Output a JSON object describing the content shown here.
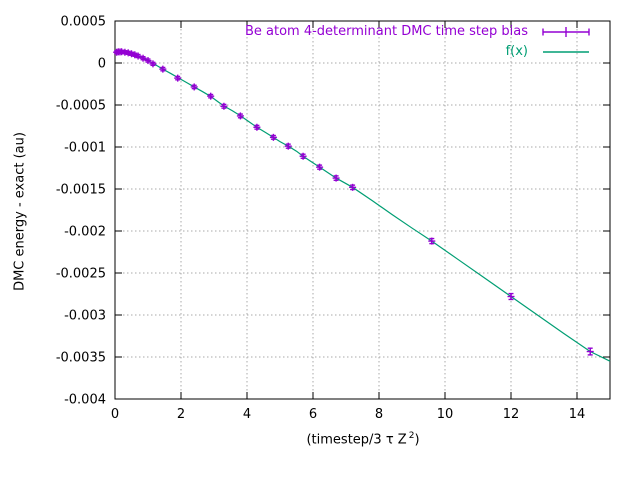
{
  "ylabel": "DMC energy - exact (au)",
  "xlabel_parts": {
    "pre": "(timestep/3 τ Z",
    "sup": "2",
    "post": ")"
  },
  "legend": [
    {
      "label": "Be atom 4-determinant DMC time step bias",
      "color": "#9400d3",
      "sample": "yerrorbar"
    },
    {
      "label": "f(x)",
      "color": "#009e73",
      "sample": "line"
    }
  ],
  "colors": {
    "points": "#9400d3",
    "fit_line": "#009e73",
    "axis": "#000000",
    "grid": "#aaaaaa",
    "background": "#ffffff"
  },
  "chart_data": {
    "type": "scatter",
    "title": "",
    "xlabel": "(timestep/3 τ Z²)",
    "ylabel": "DMC energy - exact (au)",
    "xlim": [
      0,
      15
    ],
    "ylim": [
      -0.004,
      0.0005
    ],
    "xtick_values": [
      0,
      2,
      4,
      6,
      8,
      10,
      12,
      14
    ],
    "xtick_labels": [
      "0",
      "2",
      "4",
      "6",
      "8",
      "10",
      "12",
      "14"
    ],
    "ytick_values": [
      0.0005,
      0,
      -0.0005,
      -0.001,
      -0.0015,
      -0.002,
      -0.0025,
      -0.003,
      -0.0035,
      -0.004
    ],
    "ytick_labels": [
      "0.0005",
      "0",
      "-0.0005",
      "-0.001",
      "-0.0015",
      "-0.002",
      "-0.0025",
      "-0.003",
      "-0.0035",
      "-0.004"
    ],
    "grid": true,
    "legend_position": "top-right-inside",
    "series": [
      {
        "name": "Be atom 4-determinant DMC time step bias",
        "type": "points_with_yerrorbars",
        "marker": "plus",
        "color": "#9400d3",
        "points": [
          {
            "x": 0.05,
            "y": 0.000128,
            "err": 1.8e-05
          },
          {
            "x": 0.1,
            "y": 0.000133,
            "err": 1.8e-05
          },
          {
            "x": 0.15,
            "y": 0.000132,
            "err": 1.8e-05
          },
          {
            "x": 0.2,
            "y": 0.000134,
            "err": 1.8e-05
          },
          {
            "x": 0.3,
            "y": 0.000128,
            "err": 1.8e-05
          },
          {
            "x": 0.4,
            "y": 0.000121,
            "err": 1.8e-05
          },
          {
            "x": 0.5,
            "y": 0.00011,
            "err": 1.8e-05
          },
          {
            "x": 0.6,
            "y": 9.8e-05,
            "err": 1.8e-05
          },
          {
            "x": 0.7,
            "y": 8.3e-05,
            "err": 1.8e-05
          },
          {
            "x": 0.85,
            "y": 5.7e-05,
            "err": 1.8e-05
          },
          {
            "x": 1.0,
            "y": 2.9e-05,
            "err": 1.8e-05
          },
          {
            "x": 1.15,
            "y": -1e-05,
            "err": 1.8e-05
          },
          {
            "x": 1.45,
            "y": -7.3e-05,
            "err": 2e-05
          },
          {
            "x": 1.9,
            "y": -0.00018,
            "err": 2e-05
          },
          {
            "x": 2.4,
            "y": -0.000285,
            "err": 2e-05
          },
          {
            "x": 2.9,
            "y": -0.000395,
            "err": 2e-05
          },
          {
            "x": 3.3,
            "y": -0.000515,
            "err": 2.2e-05
          },
          {
            "x": 3.8,
            "y": -0.00063,
            "err": 2.2e-05
          },
          {
            "x": 4.3,
            "y": -0.000765,
            "err": 2.2e-05
          },
          {
            "x": 4.8,
            "y": -0.000885,
            "err": 2.2e-05
          },
          {
            "x": 5.25,
            "y": -0.00099,
            "err": 2.4e-05
          },
          {
            "x": 5.7,
            "y": -0.00111,
            "err": 2.4e-05
          },
          {
            "x": 6.2,
            "y": -0.00124,
            "err": 2.4e-05
          },
          {
            "x": 6.7,
            "y": -0.00137,
            "err": 2.6e-05
          },
          {
            "x": 7.2,
            "y": -0.00148,
            "err": 2.6e-05
          },
          {
            "x": 9.6,
            "y": -0.00212,
            "err": 3e-05
          },
          {
            "x": 12.0,
            "y": -0.00278,
            "err": 3.5e-05
          },
          {
            "x": 14.4,
            "y": -0.003435,
            "err": 4e-05
          }
        ]
      },
      {
        "name": "f(x)",
        "type": "line",
        "color": "#009e73",
        "points": [
          [
            0.0,
            0.000128
          ],
          [
            0.2,
            0.000133
          ],
          [
            0.4,
            0.000121
          ],
          [
            0.6,
            0.0001
          ],
          [
            0.8,
            6.8e-05
          ],
          [
            1.0,
            2.9e-05
          ],
          [
            1.2,
            -1.5e-05
          ],
          [
            1.45,
            -7.3e-05
          ],
          [
            1.7,
            -0.000127
          ],
          [
            2.0,
            -0.000195
          ],
          [
            2.2,
            -0.00024
          ],
          [
            2.4,
            -0.000285
          ],
          [
            2.65,
            -0.00034
          ],
          [
            2.9,
            -0.000398
          ],
          [
            3.1,
            -0.000455
          ],
          [
            3.3,
            -0.000512
          ],
          [
            3.55,
            -0.000567
          ],
          [
            3.8,
            -0.000628
          ],
          [
            4.05,
            -0.000696
          ],
          [
            4.3,
            -0.000765
          ],
          [
            4.55,
            -0.000825
          ],
          [
            4.8,
            -0.000885
          ],
          [
            5.0,
            -0.000936
          ],
          [
            5.25,
            -0.00099
          ],
          [
            5.5,
            -0.00105
          ],
          [
            5.7,
            -0.00111
          ],
          [
            5.95,
            -0.001175
          ],
          [
            6.2,
            -0.00124
          ],
          [
            6.45,
            -0.001305
          ],
          [
            6.7,
            -0.00137
          ],
          [
            6.95,
            -0.001425
          ],
          [
            7.2,
            -0.00148
          ],
          [
            7.8,
            -0.00164
          ],
          [
            8.4,
            -0.001805
          ],
          [
            9.0,
            -0.001965
          ],
          [
            9.6,
            -0.00212
          ],
          [
            10.4,
            -0.00234
          ],
          [
            11.2,
            -0.00256
          ],
          [
            12.0,
            -0.00278
          ],
          [
            12.8,
            -0.003
          ],
          [
            13.6,
            -0.00322
          ],
          [
            14.4,
            -0.003435
          ],
          [
            15.0,
            -0.00355
          ]
        ]
      }
    ]
  }
}
